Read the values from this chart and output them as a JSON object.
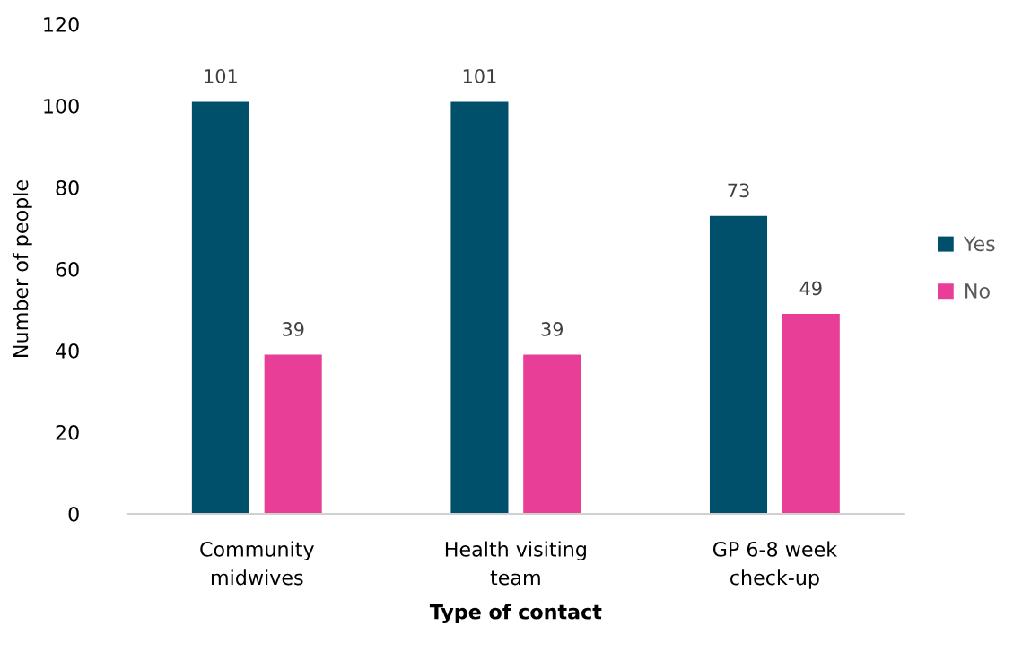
{
  "chart_data": {
    "type": "bar",
    "xlabel": "Type of contact",
    "ylabel": "Number of people",
    "categories": [
      "Community\nmidwives",
      "Health visiting\nteam",
      "GP 6-8 week\ncheck-up"
    ],
    "series": [
      {
        "name": "Yes",
        "color": "#004f6b",
        "values": [
          101,
          101,
          73
        ]
      },
      {
        "name": "No",
        "color": "#e83e97",
        "values": [
          39,
          39,
          49
        ]
      }
    ],
    "ylim": [
      0,
      120
    ],
    "yticks": [
      0,
      20,
      40,
      60,
      80,
      100,
      120
    ],
    "data_labels": true,
    "grid": false,
    "legend": "right"
  }
}
